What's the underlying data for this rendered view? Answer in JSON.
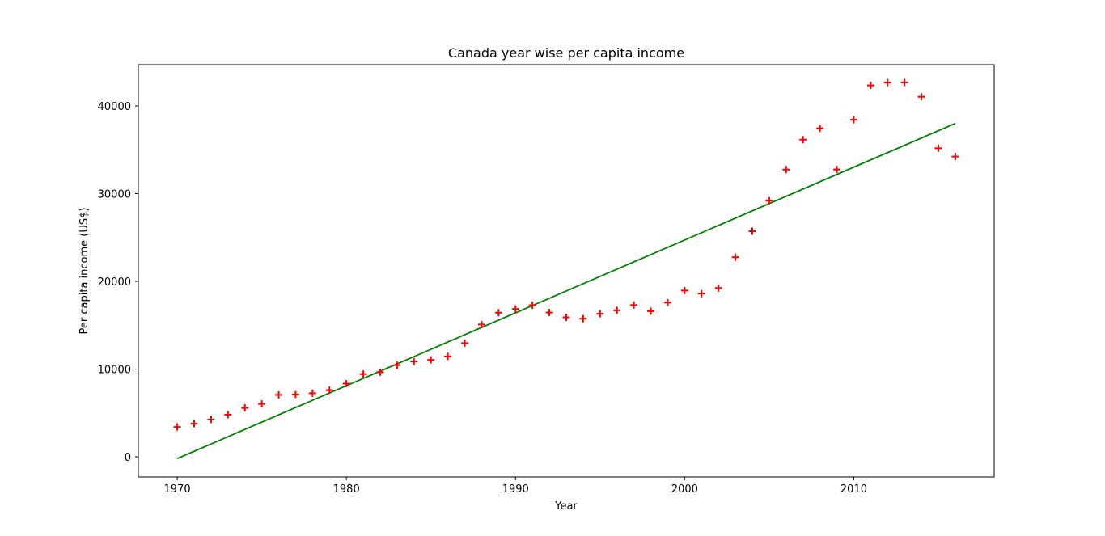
{
  "chart_data": {
    "type": "scatter",
    "title": "Canada year wise per capita income",
    "xlabel": "Year",
    "ylabel": "Per capita income (US$)",
    "xlim": [
      1967.7,
      2018.3
    ],
    "ylim": [
      -2300,
      44700
    ],
    "xticks": [
      1970,
      1980,
      1990,
      2000,
      2010
    ],
    "yticks": [
      0,
      10000,
      20000,
      30000,
      40000
    ],
    "grid": false,
    "series": [
      {
        "type": "scatter",
        "marker": "+",
        "color": "#ff0000",
        "x": [
          1970,
          1971,
          1972,
          1973,
          1974,
          1975,
          1976,
          1977,
          1978,
          1979,
          1980,
          1981,
          1982,
          1983,
          1984,
          1985,
          1986,
          1987,
          1988,
          1989,
          1990,
          1991,
          1992,
          1993,
          1994,
          1995,
          1996,
          1997,
          1998,
          1999,
          2000,
          2001,
          2002,
          2003,
          2004,
          2005,
          2006,
          2007,
          2008,
          2009,
          2010,
          2011,
          2012,
          2013,
          2014,
          2015,
          2016
        ],
        "y": [
          3400,
          3770,
          4250,
          4800,
          5580,
          6030,
          7060,
          7100,
          7250,
          7600,
          8350,
          9430,
          9650,
          10450,
          10860,
          11050,
          11450,
          12960,
          15080,
          16430,
          16850,
          17280,
          16450,
          15900,
          15740,
          16300,
          16700,
          17300,
          16600,
          17580,
          18950,
          18600,
          19240,
          22750,
          25720,
          29200,
          32740,
          36150,
          37450,
          32750,
          38420,
          42340,
          42660,
          42680,
          41040,
          35180,
          34230
        ]
      },
      {
        "type": "line",
        "color": "#008000",
        "x": [
          1970,
          2016
        ],
        "y": [
          -200,
          38000
        ]
      }
    ]
  }
}
